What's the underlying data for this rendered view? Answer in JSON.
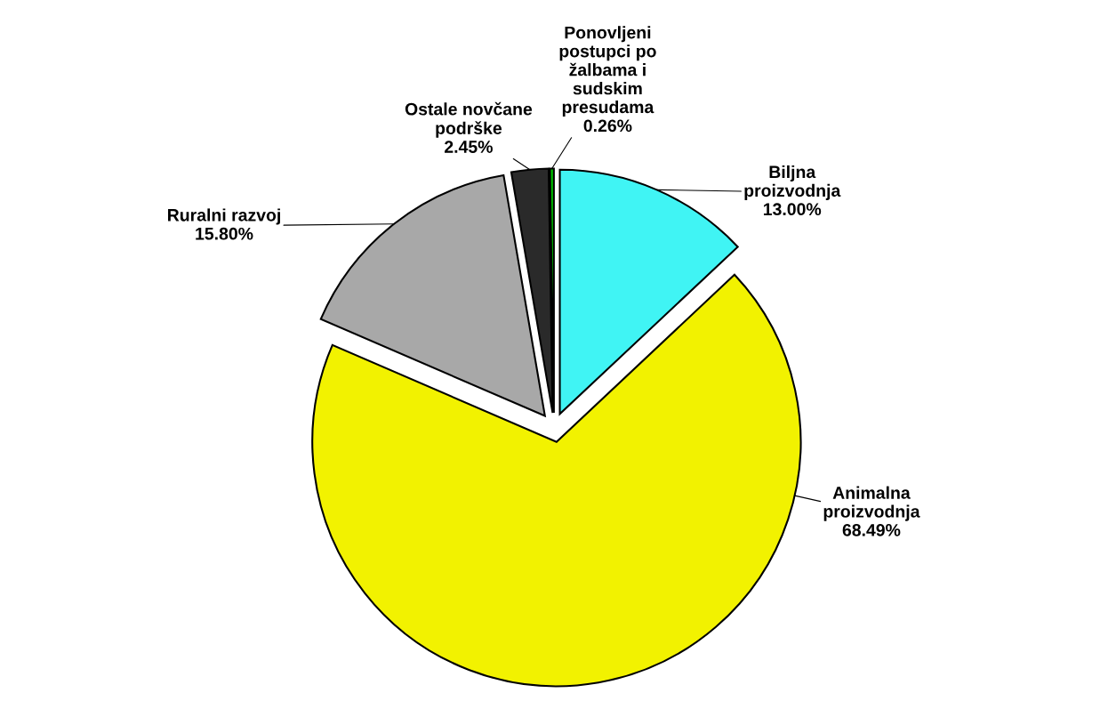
{
  "chart_data": {
    "type": "pie",
    "categories": [
      "Biljna\nproizvodnja",
      "Animalna\nproizvodnja",
      "Ruralni razvoj",
      "Ostale novčane\npodrške",
      "Ponovljeni\npostupci po\nžalbama i\nsudskim\npresudama"
    ],
    "values": [
      13.0,
      68.49,
      15.8,
      2.45,
      0.26
    ],
    "colors": [
      "#40f4f4",
      "#f2f200",
      "#a8a8a8",
      "#2a2a2a",
      "#00c000"
    ],
    "value_labels": [
      "13.00%",
      "68.49%",
      "15.80%",
      "2.45%",
      "0.26%"
    ]
  }
}
